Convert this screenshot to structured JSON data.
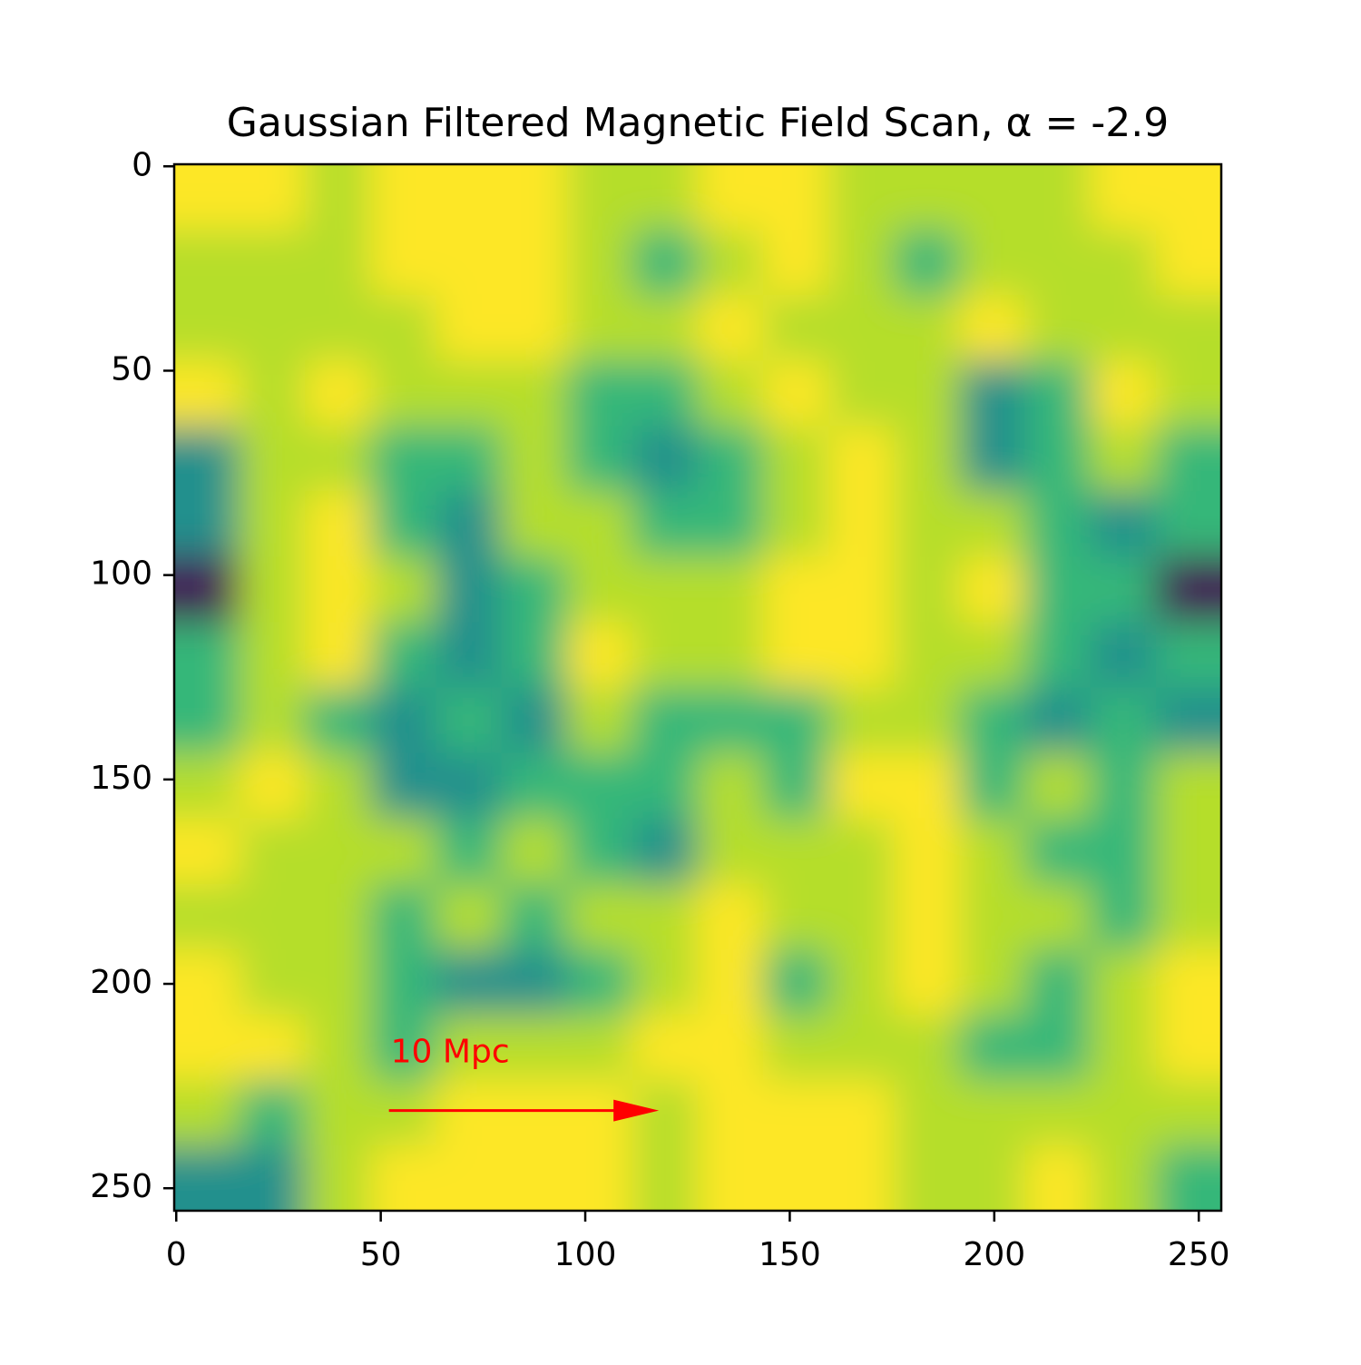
{
  "chart_data": {
    "type": "image",
    "title": "Gaussian Filtered Magnetic Field Scan, α = -2.9",
    "xlim": [
      -0.5,
      255.5
    ],
    "ylim": [
      255.5,
      -0.5
    ],
    "xticks": [
      0,
      50,
      100,
      150,
      200,
      250
    ],
    "yticks": [
      0,
      50,
      100,
      150,
      200,
      250
    ],
    "cell": 16,
    "clim": [
      0,
      4
    ],
    "colors": [
      "#440154",
      "#21908d",
      "#35b779",
      "#b5de2b",
      "#fde725"
    ],
    "grid_values": [
      [
        4,
        4,
        3,
        4,
        4,
        4,
        3,
        3,
        4,
        4,
        3,
        3,
        3,
        3,
        4,
        4
      ],
      [
        3,
        3,
        3,
        4,
        4,
        4,
        3,
        2,
        3,
        4,
        3,
        2,
        3,
        3,
        3,
        4
      ],
      [
        3,
        3,
        3,
        3,
        4,
        4,
        3,
        3,
        4,
        3,
        3,
        3,
        4,
        3,
        3,
        3
      ],
      [
        4,
        3,
        4,
        3,
        3,
        3,
        2,
        2,
        3,
        4,
        3,
        3,
        1,
        2,
        4,
        3
      ],
      [
        1,
        3,
        3,
        2,
        2,
        3,
        2,
        1,
        2,
        3,
        4,
        3,
        1,
        2,
        3,
        2
      ],
      [
        1,
        3,
        4,
        2,
        1,
        3,
        3,
        2,
        2,
        3,
        4,
        3,
        3,
        2,
        1,
        2
      ],
      [
        0,
        3,
        4,
        3,
        1,
        2,
        3,
        3,
        3,
        4,
        4,
        3,
        4,
        2,
        2,
        0
      ],
      [
        2,
        3,
        4,
        2,
        1,
        2,
        4,
        3,
        3,
        4,
        4,
        3,
        3,
        2,
        1,
        2
      ],
      [
        2,
        3,
        2,
        1,
        2,
        1,
        3,
        2,
        2,
        2,
        3,
        3,
        2,
        1,
        2,
        1
      ],
      [
        3,
        4,
        3,
        1,
        1,
        2,
        2,
        2,
        3,
        2,
        4,
        4,
        2,
        3,
        2,
        3
      ],
      [
        4,
        3,
        3,
        3,
        2,
        3,
        2,
        1,
        3,
        3,
        3,
        4,
        3,
        2,
        2,
        3
      ],
      [
        3,
        3,
        3,
        2,
        3,
        2,
        3,
        3,
        4,
        3,
        3,
        4,
        3,
        3,
        2,
        3
      ],
      [
        4,
        3,
        3,
        2,
        1,
        1,
        2,
        3,
        4,
        2,
        3,
        4,
        3,
        2,
        3,
        4
      ],
      [
        4,
        4,
        3,
        2,
        3,
        3,
        3,
        4,
        4,
        3,
        3,
        3,
        2,
        2,
        3,
        4
      ],
      [
        3,
        2,
        3,
        3,
        4,
        4,
        4,
        3,
        4,
        4,
        4,
        3,
        3,
        3,
        3,
        3
      ],
      [
        1,
        1,
        3,
        4,
        4,
        4,
        4,
        3,
        4,
        4,
        4,
        3,
        3,
        4,
        3,
        2
      ]
    ],
    "annotation": {
      "text": "10 Mpc",
      "color": "#ff0000",
      "x_start": 52,
      "x_end": 118,
      "y": 231,
      "text_y": 217
    }
  }
}
